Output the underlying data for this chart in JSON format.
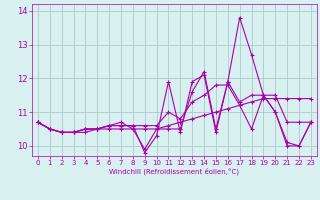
{
  "xlabel": "Windchill (Refroidissement éolien,°C)",
  "x": [
    0,
    1,
    2,
    3,
    4,
    5,
    6,
    7,
    8,
    9,
    10,
    11,
    12,
    13,
    14,
    15,
    16,
    17,
    18,
    19,
    20,
    21,
    22,
    23
  ],
  "line1": [
    10.7,
    10.5,
    10.4,
    10.4,
    10.4,
    10.5,
    10.5,
    10.5,
    10.5,
    10.5,
    10.5,
    10.6,
    10.7,
    10.8,
    10.9,
    11.0,
    11.1,
    11.2,
    11.3,
    11.4,
    11.4,
    11.4,
    11.4,
    11.4
  ],
  "line2": [
    10.7,
    10.5,
    10.4,
    10.4,
    10.5,
    10.5,
    10.6,
    10.6,
    10.6,
    9.8,
    10.3,
    11.9,
    10.4,
    11.9,
    12.1,
    10.4,
    11.9,
    13.8,
    12.7,
    11.5,
    11.0,
    10.0,
    10.0,
    10.7
  ],
  "line3": [
    10.7,
    10.5,
    10.4,
    10.4,
    10.5,
    10.5,
    10.6,
    10.6,
    10.6,
    10.6,
    10.6,
    11.0,
    10.8,
    11.3,
    11.5,
    11.8,
    11.8,
    11.2,
    10.5,
    11.5,
    11.5,
    10.7,
    10.7,
    10.7
  ],
  "line4": [
    10.7,
    10.5,
    10.4,
    10.4,
    10.5,
    10.5,
    10.6,
    10.7,
    10.5,
    9.9,
    10.5,
    10.5,
    10.5,
    11.6,
    12.2,
    10.5,
    11.9,
    11.3,
    11.5,
    11.5,
    11.0,
    10.1,
    10.0,
    10.7
  ],
  "line_color": "#aa00aa",
  "bg_color": "#d8f0f0",
  "grid_color": "#aacccc",
  "ylim": [
    9.7,
    14.2
  ],
  "yticks": [
    10,
    11,
    12,
    13,
    14
  ],
  "xticks": [
    0,
    1,
    2,
    3,
    4,
    5,
    6,
    7,
    8,
    9,
    10,
    11,
    12,
    13,
    14,
    15,
    16,
    17,
    18,
    19,
    20,
    21,
    22,
    23
  ]
}
